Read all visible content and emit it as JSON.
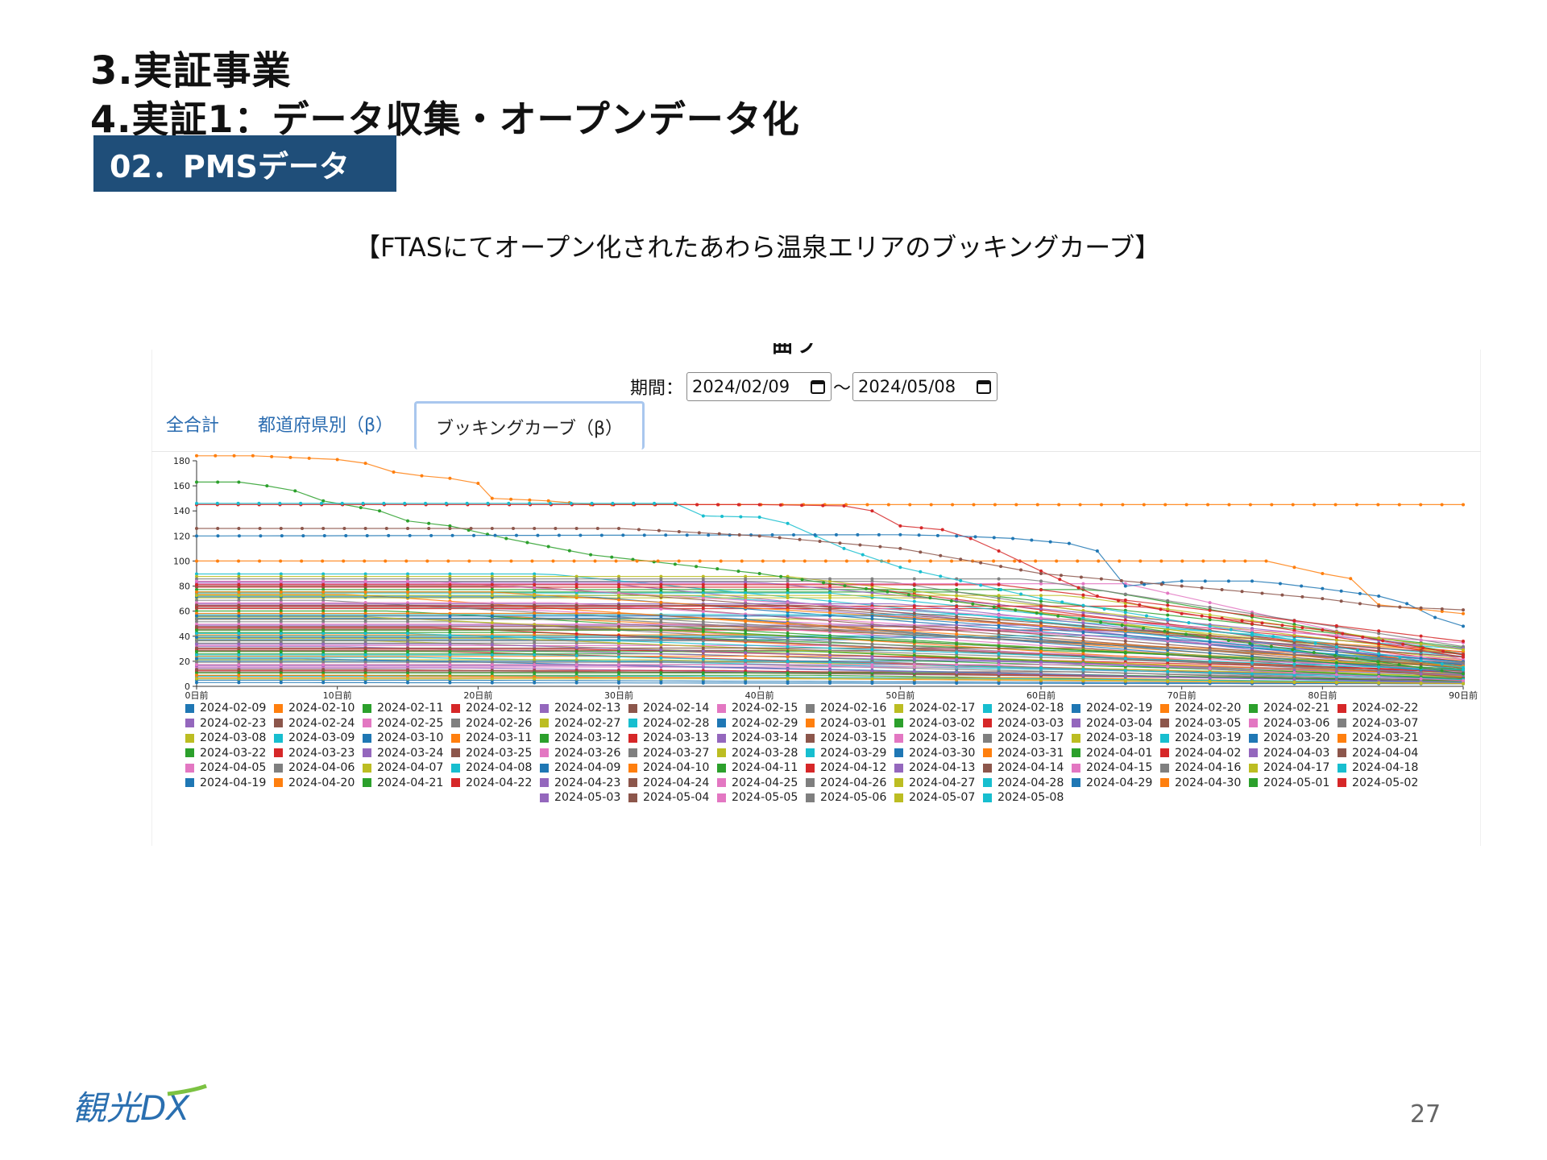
{
  "slide": {
    "title1": "3.実証事業",
    "title2": "4.実証1：データ収集・オープンデータ化",
    "section": "02．PMSデータ",
    "caption": "【FTASにてオープン化されたあわら温泉エリアのブッキングカーブ】",
    "page_number": "27",
    "logo_text": "観光DX"
  },
  "app": {
    "clipped_heading": "曲ブ",
    "period_label": "期間：",
    "date_from": "2024/02/09",
    "date_to": "2024/05/08",
    "tilde": "〜",
    "tabs": [
      {
        "label": "全合計"
      },
      {
        "label": "都道府県別（β）"
      },
      {
        "label": "ブッキングカーブ（β）"
      }
    ]
  },
  "colors": {
    "section_bg": "#1f4e79",
    "tab_link": "#2b6cb0",
    "tab_active_border": "#a9c7ee",
    "palette": [
      "#1f77b4",
      "#ff7f0e",
      "#2ca02c",
      "#d62728",
      "#9467bd",
      "#8c564b",
      "#e377c2",
      "#7f7f7f",
      "#bcbd22",
      "#17becf"
    ]
  },
  "chart_data": {
    "type": "line",
    "ylim": [
      0,
      180
    ],
    "yticks": [
      "0",
      "20",
      "40",
      "60",
      "80",
      "100",
      "120",
      "140",
      "160",
      "180"
    ],
    "xticks": [
      "0日前",
      "10日前",
      "20日前",
      "30日前",
      "40日前",
      "50日前",
      "60日前",
      "70日前",
      "80日前",
      "90日前"
    ],
    "x_range": [
      0,
      90
    ],
    "legend_position": "bottom",
    "series_names": [
      "2024-02-09",
      "2024-02-10",
      "2024-02-11",
      "2024-02-12",
      "2024-02-13",
      "2024-02-14",
      "2024-02-15",
      "2024-02-16",
      "2024-02-17",
      "2024-02-18",
      "2024-02-19",
      "2024-02-20",
      "2024-02-21",
      "2024-02-22",
      "2024-02-23",
      "2024-02-24",
      "2024-02-25",
      "2024-02-26",
      "2024-02-27",
      "2024-02-28",
      "2024-02-29",
      "2024-03-01",
      "2024-03-02",
      "2024-03-03",
      "2024-03-04",
      "2024-03-05",
      "2024-03-06",
      "2024-03-07",
      "2024-03-08",
      "2024-03-09",
      "2024-03-10",
      "2024-03-11",
      "2024-03-12",
      "2024-03-13",
      "2024-03-14",
      "2024-03-15",
      "2024-03-16",
      "2024-03-17",
      "2024-03-18",
      "2024-03-19",
      "2024-03-20",
      "2024-03-21",
      "2024-03-22",
      "2024-03-23",
      "2024-03-24",
      "2024-03-25",
      "2024-03-26",
      "2024-03-27",
      "2024-03-28",
      "2024-03-29",
      "2024-03-30",
      "2024-03-31",
      "2024-04-01",
      "2024-04-02",
      "2024-04-03",
      "2024-04-04",
      "2024-04-05",
      "2024-04-06",
      "2024-04-07",
      "2024-04-08",
      "2024-04-09",
      "2024-04-10",
      "2024-04-11",
      "2024-04-12",
      "2024-04-13",
      "2024-04-14",
      "2024-04-15",
      "2024-04-16",
      "2024-04-17",
      "2024-04-18",
      "2024-04-19",
      "2024-04-20",
      "2024-04-21",
      "2024-04-22",
      "2024-04-23",
      "2024-04-24",
      "2024-04-25",
      "2024-04-26",
      "2024-04-27",
      "2024-04-28",
      "2024-04-29",
      "2024-04-30",
      "2024-05-01",
      "2024-05-02",
      "2024-05-03",
      "2024-05-04",
      "2024-05-05",
      "2024-05-06",
      "2024-05-07",
      "2024-05-08"
    ],
    "highlight_series": [
      {
        "name": "2024-02-10",
        "color": "#ff7f0e",
        "points": [
          [
            0,
            184
          ],
          [
            4,
            184
          ],
          [
            8,
            182
          ],
          [
            10,
            181
          ],
          [
            12,
            178
          ],
          [
            14,
            171
          ],
          [
            16,
            168
          ],
          [
            18,
            166
          ],
          [
            20,
            162
          ],
          [
            21,
            150
          ],
          [
            25,
            148
          ],
          [
            28,
            145
          ],
          [
            90,
            145
          ]
        ]
      },
      {
        "name": "2024-02-11",
        "color": "#2ca02c",
        "points": [
          [
            0,
            163
          ],
          [
            3,
            163
          ],
          [
            5,
            160
          ],
          [
            7,
            156
          ],
          [
            9,
            148
          ],
          [
            13,
            140
          ],
          [
            15,
            132
          ],
          [
            18,
            128
          ],
          [
            22,
            118
          ],
          [
            28,
            105
          ],
          [
            40,
            90
          ],
          [
            90,
            10
          ]
        ]
      },
      {
        "name": "2024-02-12",
        "color": "#d62728",
        "points": [
          [
            0,
            145
          ],
          [
            40,
            145
          ],
          [
            46,
            144
          ],
          [
            48,
            140
          ],
          [
            50,
            128
          ],
          [
            53,
            125
          ],
          [
            55,
            118
          ],
          [
            57,
            108
          ],
          [
            60,
            92
          ],
          [
            64,
            72
          ],
          [
            70,
            58
          ],
          [
            80,
            45
          ],
          [
            90,
            25
          ]
        ]
      },
      {
        "name": "2024-02-15",
        "color": "#17becf",
        "points": [
          [
            0,
            146
          ],
          [
            34,
            146
          ],
          [
            36,
            136
          ],
          [
            40,
            135
          ],
          [
            42,
            130
          ],
          [
            44,
            120
          ],
          [
            46,
            110
          ],
          [
            50,
            95
          ],
          [
            60,
            70
          ],
          [
            90,
            15
          ]
        ]
      },
      {
        "name": "2024-02-19",
        "color": "#1f77b4",
        "points": [
          [
            0,
            120
          ],
          [
            50,
            121
          ],
          [
            54,
            120
          ],
          [
            58,
            118
          ],
          [
            62,
            114
          ],
          [
            64,
            108
          ],
          [
            66,
            80
          ],
          [
            70,
            84
          ],
          [
            75,
            84
          ],
          [
            77,
            82
          ],
          [
            80,
            78
          ],
          [
            84,
            72
          ],
          [
            86,
            66
          ],
          [
            88,
            55
          ],
          [
            90,
            48
          ]
        ]
      },
      {
        "name": "2024-02-20",
        "color": "#ff7f0e",
        "points": [
          [
            0,
            100
          ],
          [
            76,
            100
          ],
          [
            78,
            95
          ],
          [
            80,
            90
          ],
          [
            82,
            86
          ],
          [
            84,
            65
          ],
          [
            90,
            58
          ]
        ]
      },
      {
        "name": "2024-02-14",
        "color": "#8c564b",
        "points": [
          [
            0,
            126
          ],
          [
            30,
            126
          ],
          [
            40,
            120
          ],
          [
            50,
            110
          ],
          [
            60,
            90
          ],
          [
            70,
            80
          ],
          [
            80,
            70
          ],
          [
            84,
            64
          ],
          [
            90,
            61
          ]
        ]
      }
    ]
  }
}
